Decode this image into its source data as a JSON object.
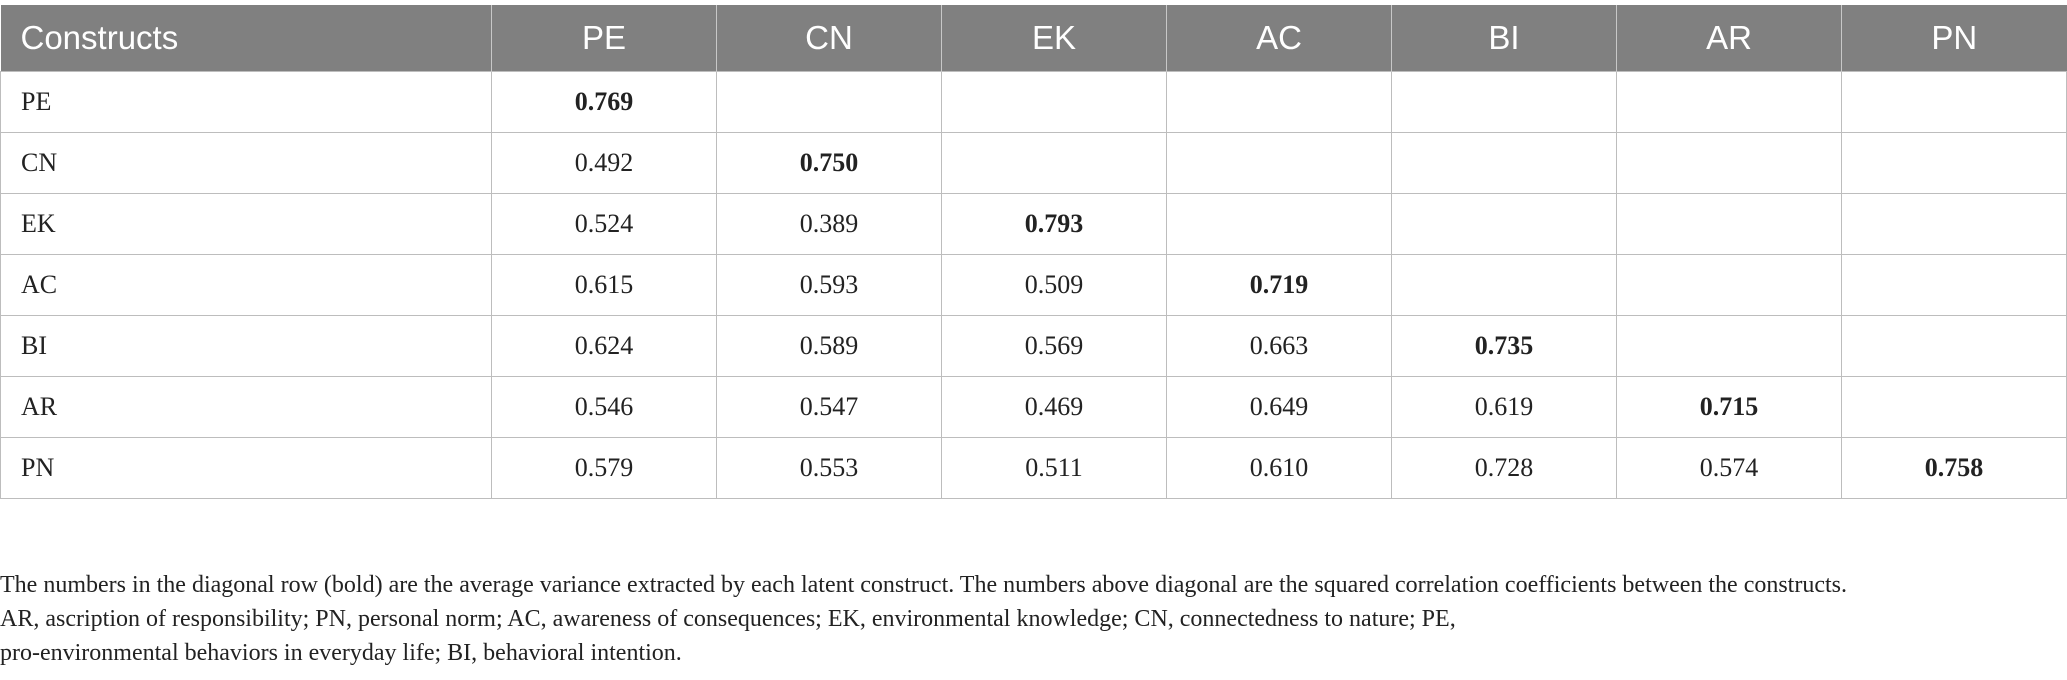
{
  "table": {
    "headers": [
      "Constructs",
      "PE",
      "CN",
      "EK",
      "AC",
      "BI",
      "AR",
      "PN"
    ],
    "rows": [
      [
        "PE",
        "0.769",
        "",
        "",
        "",
        "",
        "",
        ""
      ],
      [
        "CN",
        "0.492",
        "0.750",
        "",
        "",
        "",
        "",
        ""
      ],
      [
        "EK",
        "0.524",
        "0.389",
        "0.793",
        "",
        "",
        "",
        ""
      ],
      [
        "AC",
        "0.615",
        "0.593",
        "0.509",
        "0.719",
        "",
        "",
        ""
      ],
      [
        "BI",
        "0.624",
        "0.589",
        "0.569",
        "0.663",
        "0.735",
        "",
        ""
      ],
      [
        "AR",
        "0.546",
        "0.547",
        "0.469",
        "0.649",
        "0.619",
        "0.715",
        ""
      ],
      [
        "PN",
        "0.579",
        "0.553",
        "0.511",
        "0.610",
        "0.728",
        "0.574",
        "0.758"
      ]
    ]
  },
  "footnote": {
    "line1": "The numbers in the diagonal row (bold) are the average variance extracted by each latent construct. The numbers above diagonal are the squared correlation coefficients between the constructs.",
    "line2": "AR, ascription of responsibility; PN, personal norm; AC, awareness of consequences; EK, environmental knowledge; CN, connectedness to nature; PE,",
    "line3": "pro-environmental behaviors in everyday life; BI, behavioral intention."
  }
}
